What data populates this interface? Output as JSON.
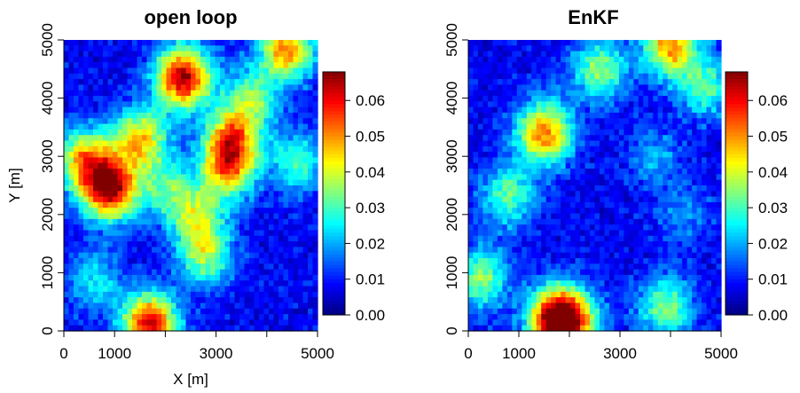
{
  "chart_data": [
    {
      "type": "heatmap",
      "title": "open loop",
      "xlabel": "X [m]",
      "ylabel": "Y [m]",
      "xlim": [
        0,
        5000
      ],
      "ylim": [
        0,
        5000
      ],
      "xticks": [
        "0",
        "1000",
        "3000",
        "5000"
      ],
      "xtick_values": [
        0,
        1000,
        3000,
        5000
      ],
      "xtick_marks": [
        0,
        1000,
        2000,
        3000,
        4000,
        5000
      ],
      "yticks": [
        "0",
        "1000",
        "2000",
        "3000",
        "4000",
        "5000"
      ],
      "ytick_values": [
        0,
        1000,
        2000,
        3000,
        4000,
        5000
      ],
      "colorbar": {
        "range": [
          0,
          0.068
        ],
        "ticks": [
          "0.00",
          "0.01",
          "0.02",
          "0.03",
          "0.04",
          "0.05",
          "0.06"
        ],
        "tick_values": [
          0,
          0.01,
          0.02,
          0.03,
          0.04,
          0.05,
          0.06
        ],
        "colormap": "jet"
      },
      "grid": false,
      "hotspots": [
        {
          "x": 2350,
          "y": 4350,
          "value": 0.065
        },
        {
          "x": 900,
          "y": 2450,
          "value": 0.066
        },
        {
          "x": 400,
          "y": 2950,
          "value": 0.045
        },
        {
          "x": 1500,
          "y": 3300,
          "value": 0.045
        },
        {
          "x": 3300,
          "y": 3300,
          "value": 0.045
        },
        {
          "x": 3250,
          "y": 2800,
          "value": 0.043
        },
        {
          "x": 4400,
          "y": 4850,
          "value": 0.05
        },
        {
          "x": 1700,
          "y": 100,
          "value": 0.062
        },
        {
          "x": 2800,
          "y": 1300,
          "value": 0.036
        },
        {
          "x": 2600,
          "y": 2000,
          "value": 0.033
        },
        {
          "x": 600,
          "y": 850,
          "value": 0.025
        },
        {
          "x": 2000,
          "y": 2450,
          "value": 0.028
        },
        {
          "x": 3700,
          "y": 4000,
          "value": 0.033
        },
        {
          "x": 4600,
          "y": 2900,
          "value": 0.03
        }
      ]
    },
    {
      "type": "heatmap",
      "title": "EnKF",
      "xlabel": "",
      "ylabel": "",
      "xlim": [
        0,
        5000
      ],
      "ylim": [
        0,
        5000
      ],
      "xticks": [
        "0",
        "1000",
        "3000",
        "5000"
      ],
      "xtick_values": [
        0,
        1000,
        3000,
        5000
      ],
      "xtick_marks": [
        0,
        1000,
        2000,
        3000,
        4000,
        5000
      ],
      "yticks": [
        "0",
        "1000",
        "2000",
        "3000",
        "4000",
        "5000"
      ],
      "ytick_values": [
        0,
        1000,
        2000,
        3000,
        4000,
        5000
      ],
      "colorbar": {
        "range": [
          0,
          0.068
        ],
        "ticks": [
          "0.00",
          "0.01",
          "0.02",
          "0.03",
          "0.04",
          "0.05",
          "0.06"
        ],
        "tick_values": [
          0,
          0.01,
          0.02,
          0.03,
          0.04,
          0.05,
          0.06
        ],
        "colormap": "jet"
      },
      "grid": false,
      "hotspots": [
        {
          "x": 1500,
          "y": 3400,
          "value": 0.052
        },
        {
          "x": 4000,
          "y": 4900,
          "value": 0.05
        },
        {
          "x": 2600,
          "y": 4500,
          "value": 0.035
        },
        {
          "x": 4700,
          "y": 4200,
          "value": 0.03
        },
        {
          "x": 800,
          "y": 2300,
          "value": 0.032
        },
        {
          "x": 1700,
          "y": 200,
          "value": 0.058
        },
        {
          "x": 2050,
          "y": 150,
          "value": 0.045
        },
        {
          "x": 250,
          "y": 900,
          "value": 0.035
        },
        {
          "x": 3900,
          "y": 400,
          "value": 0.035
        },
        {
          "x": 3700,
          "y": 3000,
          "value": 0.02
        },
        {
          "x": 4300,
          "y": 2000,
          "value": 0.018
        }
      ]
    }
  ]
}
